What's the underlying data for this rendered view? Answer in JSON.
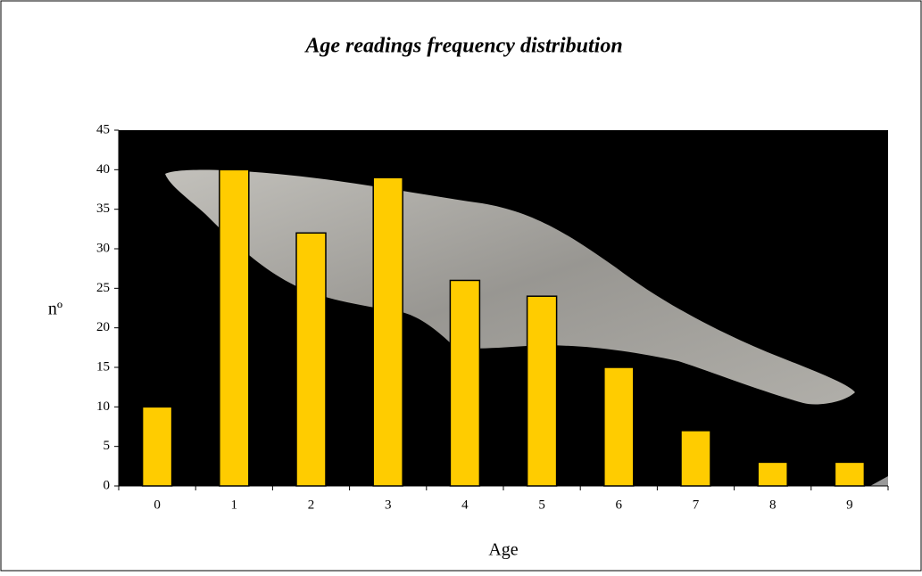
{
  "chart_data": {
    "type": "bar",
    "title": "Age readings frequency distribution",
    "x_label": "Age",
    "y_label": "nº",
    "categories": [
      "0",
      "1",
      "2",
      "3",
      "4",
      "5",
      "6",
      "7",
      "8",
      "9"
    ],
    "values": [
      10,
      40,
      32,
      39,
      26,
      24,
      15,
      7,
      3,
      3
    ],
    "color": "#ffcc00",
    "ylim": [
      0,
      45
    ],
    "yticks": [
      0,
      5,
      10,
      15,
      20,
      25,
      30,
      35,
      40,
      45
    ]
  }
}
